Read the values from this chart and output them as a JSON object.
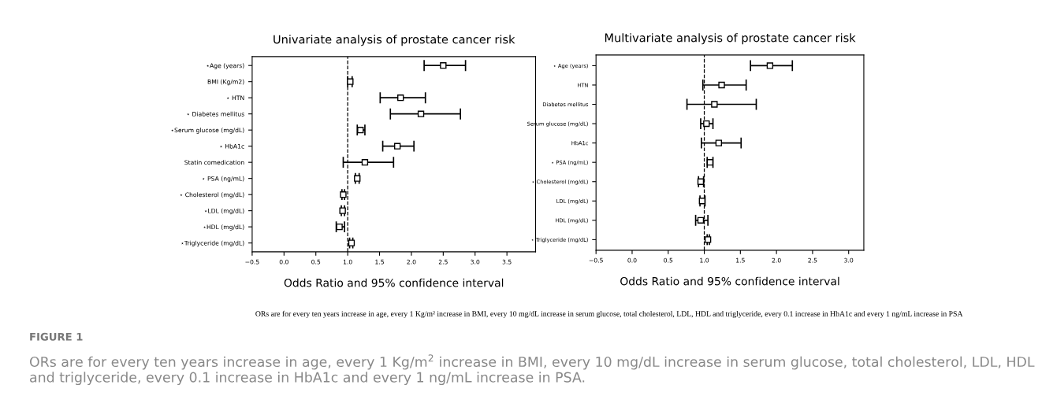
{
  "chart_data": [
    {
      "type": "scatter",
      "orientation": "horizontal",
      "title": "Univariate analysis of prostate cancer risk",
      "xlabel": "Odds Ratio and 95% confidence interval",
      "categories": [
        "⋆Age (years)",
        "BMI (Kg/m2)",
        "⋆ HTN",
        "⋆ Diabetes mellitus",
        "⋆Serum glucose (mg/dL)",
        "⋆ HbA1c",
        "Statin comedication",
        "⋆ PSA (ng/mL)",
        "⋆ Cholesterol (mg/dL)",
        "⋆LDL (mg/dL)",
        "⋆HDL (mg/dL)",
        "⋆Triglyceride (mg/dL)"
      ],
      "values": [
        2.5,
        1.04,
        1.83,
        2.15,
        1.2,
        1.78,
        1.27,
        1.15,
        0.93,
        0.92,
        0.87,
        1.06
      ],
      "errors": [
        [
          2.2,
          2.85
        ],
        [
          1.0,
          1.07
        ],
        [
          1.51,
          2.22
        ],
        [
          1.67,
          2.77
        ],
        [
          1.15,
          1.27
        ],
        [
          1.55,
          2.04
        ],
        [
          0.93,
          1.72
        ],
        [
          1.12,
          1.18
        ],
        [
          0.91,
          0.95
        ],
        [
          0.9,
          0.95
        ],
        [
          0.82,
          0.95
        ],
        [
          1.03,
          1.08
        ]
      ],
      "color": "#000000",
      "marker": "square",
      "xlim": [
        -0.5,
        3.95
      ],
      "xticks": [
        {
          "value": -0.5,
          "label": "−0.5"
        },
        {
          "value": 0,
          "label": "0.0"
        },
        0.5,
        {
          "value": 1,
          "label": "1.0"
        },
        1.5,
        {
          "value": 2,
          "label": "2.0"
        },
        2.5,
        {
          "value": 3,
          "label": "3.0"
        },
        3.5
      ],
      "ref_lines": [
        {
          "axis": "x",
          "value": 1.0,
          "line_style": "dashed",
          "color": "#000000"
        }
      ],
      "annotations": [
        "ORs are for every ten years increase in age, every 1 Kg/m² increase in BMI, every 10 mg/dL increase in serum glucose, total cholesterol, LDL, HDL and triglyceride, every 0.1 increase in HbA1c and every 1 ng/mL increase in PSA",
        "FIGURE 1",
        "ORs are for every ten years increase in age, every 1 Kg/m$^{2}$ increase in BMI, every 10 mg/dL increase in serum glucose, total cholesterol, LDL, HDL and triglyceride, every 0.1 increase in HbA1c and every 1 ng/mL increase in PSA."
      ]
    },
    {
      "type": "scatter",
      "orientation": "horizontal",
      "title": "Multivariate analysis of prostate cancer risk",
      "xlabel": "Odds Ratio and 95% confidence interval",
      "categories": [
        "⋆ Age (years)",
        "HTN",
        "Diabetes mellitus",
        "Serum glucose (mg/dL)",
        "HbA1c",
        "⋆ PSA (ng/mL)",
        "⋆ Cholesterol (mg/dL)",
        "LDL (mg/dL)",
        "HDL (mg/dL)",
        "⋆ Triglyceride (mg/dL)"
      ],
      "values": [
        1.91,
        1.24,
        1.14,
        1.03,
        1.2,
        1.08,
        0.95,
        0.97,
        0.95,
        1.05
      ],
      "errors": [
        [
          1.64,
          2.22
        ],
        [
          0.98,
          1.58
        ],
        [
          0.76,
          1.72
        ],
        [
          0.95,
          1.12
        ],
        [
          0.96,
          1.51
        ],
        [
          1.04,
          1.12
        ],
        [
          0.92,
          0.99
        ],
        [
          0.94,
          1.01
        ],
        [
          0.88,
          1.05
        ],
        [
          1.04,
          1.07
        ]
      ],
      "color": "#000000",
      "marker": "square",
      "xlim": [
        -0.5,
        3.21
      ],
      "xticks": [
        {
          "value": -0.5,
          "label": "−0.5"
        },
        {
          "value": 0,
          "label": "0.0"
        },
        0.5,
        {
          "value": 1,
          "label": "1.0"
        },
        1.5,
        {
          "value": 2,
          "label": "2.0"
        },
        2.5,
        {
          "value": 3,
          "label": "3.0"
        }
      ],
      "ref_lines": [
        {
          "axis": "x",
          "value": 1.0,
          "line_style": "dashed",
          "color": "#000000"
        }
      ]
    }
  ]
}
